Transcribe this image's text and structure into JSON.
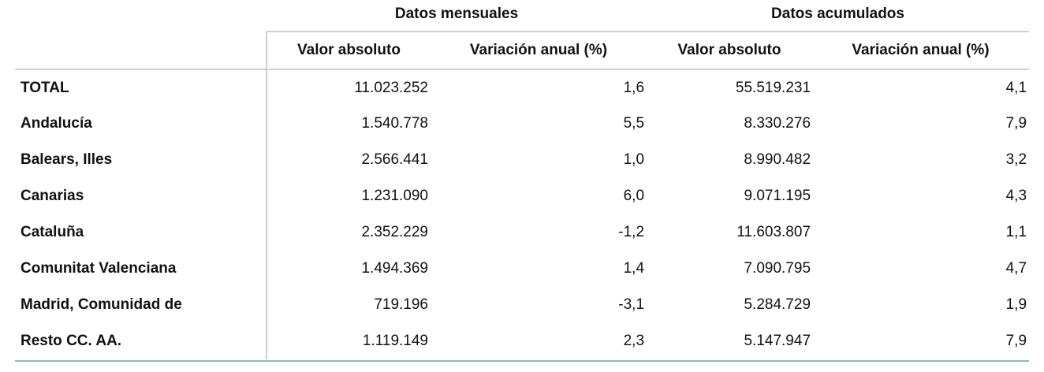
{
  "table": {
    "group_headers": {
      "monthly": "Datos mensuales",
      "cumulative": "Datos acumulados"
    },
    "sub_headers": {
      "monthly_abs": "Valor absoluto",
      "monthly_var": "Variación anual (%)",
      "cumulative_abs": "Valor absoluto",
      "cumulative_var": "Variación anual (%)"
    },
    "rows": [
      {
        "label": "TOTAL",
        "m_abs": "11.023.252",
        "m_var": "1,6",
        "a_abs": "55.519.231",
        "a_var": "4,1"
      },
      {
        "label": "Andalucía",
        "m_abs": "1.540.778",
        "m_var": "5,5",
        "a_abs": "8.330.276",
        "a_var": "7,9"
      },
      {
        "label": "Balears, Illes",
        "m_abs": "2.566.441",
        "m_var": "1,0",
        "a_abs": "8.990.482",
        "a_var": "3,2"
      },
      {
        "label": "Canarias",
        "m_abs": "1.231.090",
        "m_var": "6,0",
        "a_abs": "9.071.195",
        "a_var": "4,3"
      },
      {
        "label": "Cataluña",
        "m_abs": "2.352.229",
        "m_var": "-1,2",
        "a_abs": "11.603.807",
        "a_var": "1,1"
      },
      {
        "label": "Comunitat Valenciana",
        "m_abs": "1.494.369",
        "m_var": "1,4",
        "a_abs": "7.090.795",
        "a_var": "4,7"
      },
      {
        "label": "Madrid, Comunidad de",
        "m_abs": "719.196",
        "m_var": "-3,1",
        "a_abs": "5.284.729",
        "a_var": "1,9"
      },
      {
        "label": "Resto CC. AA.",
        "m_abs": "1.119.149",
        "m_var": "2,3",
        "a_abs": "5.147.947",
        "a_var": "7,9"
      }
    ]
  },
  "colors": {
    "rule": "#c9cfd2",
    "bottom_rule": "#8fbcb5"
  }
}
